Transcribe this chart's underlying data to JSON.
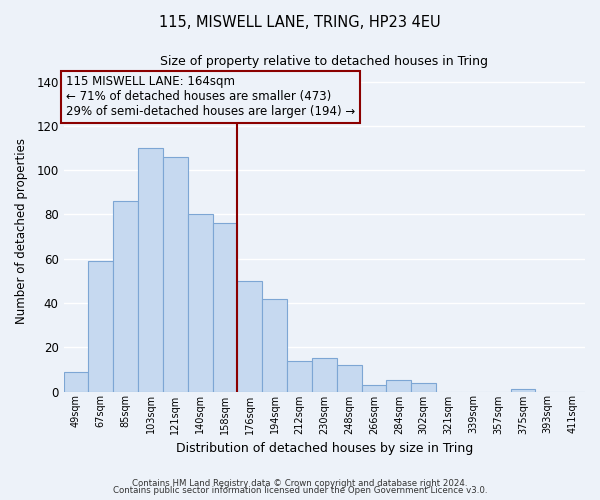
{
  "title": "115, MISWELL LANE, TRING, HP23 4EU",
  "subtitle": "Size of property relative to detached houses in Tring",
  "xlabel": "Distribution of detached houses by size in Tring",
  "ylabel": "Number of detached properties",
  "categories": [
    "49sqm",
    "67sqm",
    "85sqm",
    "103sqm",
    "121sqm",
    "140sqm",
    "158sqm",
    "176sqm",
    "194sqm",
    "212sqm",
    "230sqm",
    "248sqm",
    "266sqm",
    "284sqm",
    "302sqm",
    "321sqm",
    "339sqm",
    "357sqm",
    "375sqm",
    "393sqm",
    "411sqm"
  ],
  "values": [
    9,
    59,
    86,
    110,
    106,
    80,
    76,
    50,
    42,
    14,
    15,
    12,
    3,
    5,
    4,
    0,
    0,
    0,
    1,
    0,
    0
  ],
  "bar_color": "#c6d9f0",
  "bar_edge_color": "#7da6d4",
  "ylim": [
    0,
    145
  ],
  "yticks": [
    0,
    20,
    40,
    60,
    80,
    100,
    120,
    140
  ],
  "property_line_x": 7.0,
  "property_line_color": "#8b0000",
  "annotation_line1": "115 MISWELL LANE: 164sqm",
  "annotation_line2": "← 71% of detached houses are smaller (473)",
  "annotation_line3": "29% of semi-detached houses are larger (194) →",
  "annotation_box_edge_color": "#8b0000",
  "footnote1": "Contains HM Land Registry data © Crown copyright and database right 2024.",
  "footnote2": "Contains public sector information licensed under the Open Government Licence v3.0.",
  "background_color": "#edf2f9",
  "grid_color": "#ffffff"
}
